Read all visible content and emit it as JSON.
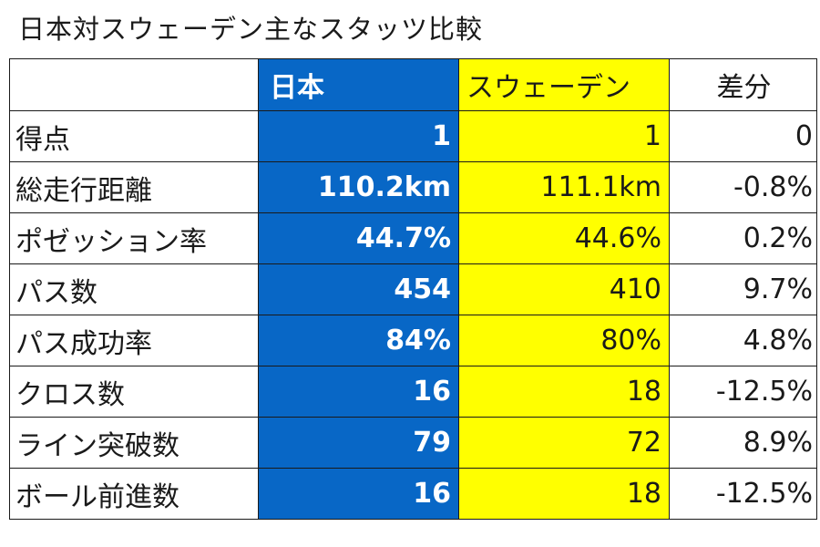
{
  "title": "日本対スウェーデン主なスタッツ比較",
  "colors": {
    "japan": "#0867c6",
    "sweden": "#ffff00",
    "border": "#1a1a1a"
  },
  "headers": {
    "label": "",
    "japan": "日本",
    "sweden": "スウェーデン",
    "diff": "差分"
  },
  "rows": [
    {
      "label": "得点",
      "japan": "1",
      "sweden": "1",
      "diff": "0"
    },
    {
      "label": "総走行距離",
      "japan": "110.2km",
      "sweden": "111.1km",
      "diff": "-0.8%"
    },
    {
      "label": "ポゼッション率",
      "japan": "44.7%",
      "sweden": "44.6%",
      "diff": "0.2%"
    },
    {
      "label": "パス数",
      "japan": "454",
      "sweden": "410",
      "diff": "9.7%"
    },
    {
      "label": "パス成功率",
      "japan": "84%",
      "sweden": "80%",
      "diff": "4.8%"
    },
    {
      "label": "クロス数",
      "japan": "16",
      "sweden": "18",
      "diff": "-12.5%"
    },
    {
      "label": "ライン突破数",
      "japan": "79",
      "sweden": "72",
      "diff": "8.9%"
    },
    {
      "label": "ボール前進数",
      "japan": "16",
      "sweden": "18",
      "diff": "-12.5%"
    }
  ]
}
